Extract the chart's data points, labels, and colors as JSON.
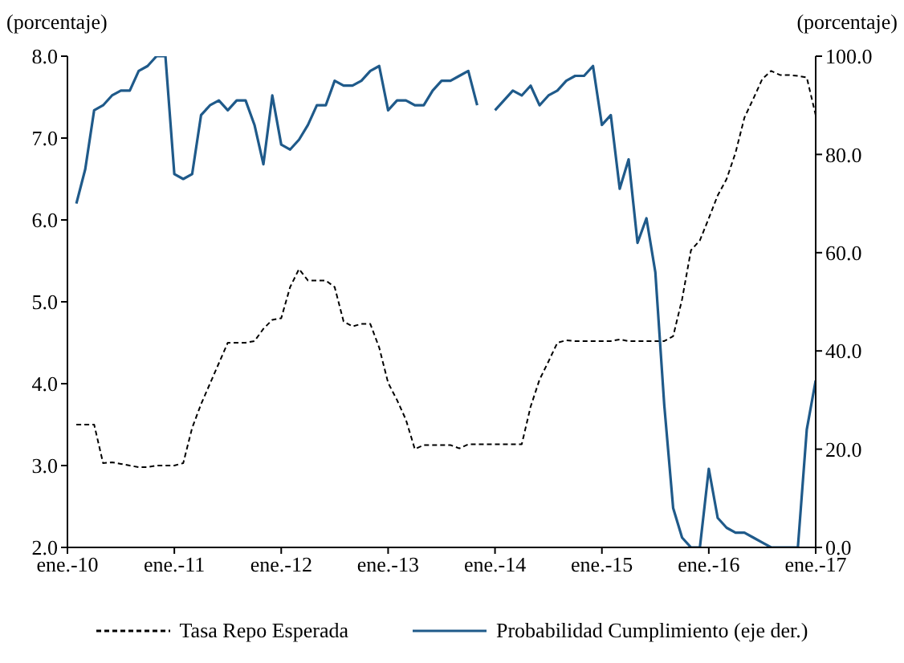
{
  "chart_data": {
    "type": "line",
    "ylabel": "(porcentaje)",
    "y2label": "(porcentaje)",
    "x": [
      "2010-02",
      "2010-03",
      "2010-04",
      "2010-05",
      "2010-06",
      "2010-07",
      "2010-08",
      "2010-09",
      "2010-10",
      "2010-11",
      "2010-12",
      "2011-01",
      "2011-02",
      "2011-03",
      "2011-04",
      "2011-05",
      "2011-06",
      "2011-07",
      "2011-08",
      "2011-09",
      "2011-10",
      "2011-11",
      "2011-12",
      "2012-01",
      "2012-02",
      "2012-03",
      "2012-04",
      "2012-05",
      "2012-06",
      "2012-07",
      "2012-08",
      "2012-09",
      "2012-10",
      "2012-11",
      "2012-12",
      "2013-01",
      "2013-02",
      "2013-03",
      "2013-04",
      "2013-05",
      "2013-06",
      "2013-07",
      "2013-08",
      "2013-09",
      "2013-10",
      "2013-11",
      "2013-12",
      "2014-01",
      "2014-02",
      "2014-03",
      "2014-04",
      "2014-05",
      "2014-06",
      "2014-07",
      "2014-08",
      "2014-09",
      "2014-10",
      "2014-11",
      "2014-12",
      "2015-01",
      "2015-02",
      "2015-03",
      "2015-04",
      "2015-05",
      "2015-06",
      "2015-07",
      "2015-08",
      "2015-09",
      "2015-10",
      "2015-11",
      "2015-12",
      "2016-01",
      "2016-02",
      "2016-03",
      "2016-04",
      "2016-05",
      "2016-06",
      "2016-07",
      "2016-08",
      "2016-09",
      "2016-10",
      "2016-11",
      "2016-12",
      "2017-01"
    ],
    "series": [
      {
        "name": "Tasa Repo Esperada",
        "color": "#000000",
        "line_style": "dashed",
        "values": [
          3.5,
          3.5,
          3.5,
          3.03,
          3.04,
          3.02,
          3.0,
          2.98,
          2.98,
          3.0,
          3.0,
          3.0,
          3.03,
          3.46,
          3.75,
          4.0,
          4.25,
          4.5,
          4.5,
          4.5,
          4.52,
          4.67,
          4.78,
          4.8,
          5.18,
          5.4,
          5.26,
          5.26,
          5.26,
          5.18,
          4.76,
          4.7,
          4.73,
          4.73,
          4.44,
          4.01,
          3.8,
          3.56,
          3.2,
          3.25,
          3.25,
          3.25,
          3.25,
          3.21,
          3.26,
          3.26,
          3.26,
          3.26,
          3.26,
          3.26,
          3.26,
          3.72,
          4.05,
          4.27,
          4.5,
          4.53,
          4.52,
          4.52,
          4.52,
          4.52,
          4.52,
          4.54,
          4.52,
          4.52,
          4.52,
          4.52,
          4.52,
          4.58,
          5.03,
          5.63,
          5.75,
          6.02,
          6.3,
          6.5,
          6.82,
          7.25,
          7.48,
          7.72,
          7.82,
          7.77,
          7.77,
          7.76,
          7.74,
          7.28
        ]
      },
      {
        "name": "Probabilidad Cumplimiento (eje der.)",
        "color": "#1f5a8a",
        "line_style": "solid",
        "axis": "y2",
        "values": [
          70,
          77,
          89,
          90,
          92,
          93,
          93,
          97,
          98,
          100,
          100,
          76,
          75,
          76,
          88,
          90,
          91,
          89,
          91,
          91,
          86,
          78,
          92,
          82,
          81,
          83,
          86,
          90,
          90,
          95,
          94,
          94,
          95,
          97,
          98,
          89,
          91,
          91,
          90,
          90,
          93,
          95,
          95,
          96,
          97,
          90,
          null,
          89,
          91,
          93,
          92,
          94,
          90,
          92,
          93,
          95,
          96,
          96,
          98,
          86,
          88,
          73,
          79,
          62,
          67,
          56,
          29,
          8,
          2,
          0,
          0,
          16,
          6,
          4,
          3,
          3,
          2,
          1,
          0,
          0,
          0,
          0,
          24,
          34
        ]
      }
    ],
    "xlim": [
      "2010-01",
      "2017-01"
    ],
    "xticks": [
      {
        "value": "2010-01",
        "label": "ene.-10"
      },
      {
        "value": "2011-01",
        "label": "ene.-11"
      },
      {
        "value": "2012-01",
        "label": "ene.-12"
      },
      {
        "value": "2013-01",
        "label": "ene.-13"
      },
      {
        "value": "2014-01",
        "label": "ene.-14"
      },
      {
        "value": "2015-01",
        "label": "ene.-15"
      },
      {
        "value": "2016-01",
        "label": "ene.-16"
      },
      {
        "value": "2017-01",
        "label": "ene.-17"
      }
    ],
    "ylim": [
      2,
      8
    ],
    "yticks": [
      {
        "value": 2,
        "label": "2.0"
      },
      {
        "value": 3,
        "label": "3.0"
      },
      {
        "value": 4,
        "label": "4.0"
      },
      {
        "value": 5,
        "label": "5.0"
      },
      {
        "value": 6,
        "label": "6.0"
      },
      {
        "value": 7,
        "label": "7.0"
      },
      {
        "value": 8,
        "label": "8.0"
      }
    ],
    "y2lim": [
      0,
      100
    ],
    "y2ticks": [
      {
        "value": 0,
        "label": "0.0"
      },
      {
        "value": 20,
        "label": "20.0"
      },
      {
        "value": 40,
        "label": "40.0"
      },
      {
        "value": 60,
        "label": "60.0"
      },
      {
        "value": 80,
        "label": "80.0"
      },
      {
        "value": 100,
        "label": "100.0"
      }
    ],
    "legend": "bottom",
    "marker": "none"
  }
}
